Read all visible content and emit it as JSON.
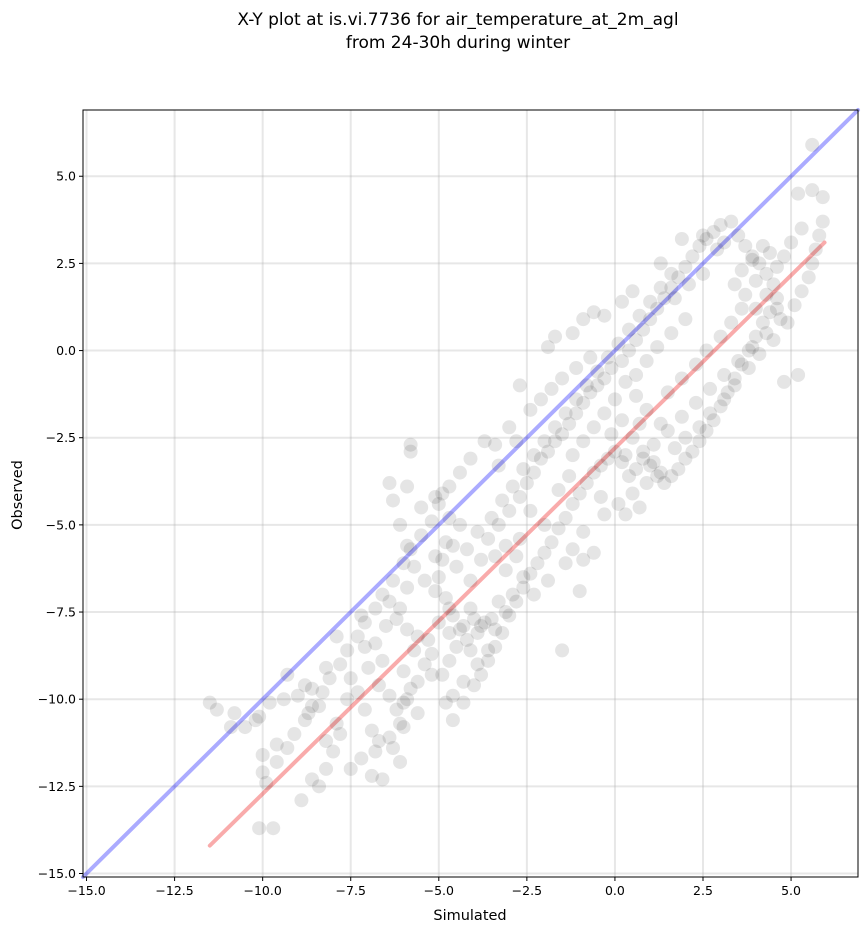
{
  "chart_data": {
    "type": "scatter",
    "title": [
      "X-Y plot at is.vi.7736 for air_temperature_at_2m_agl",
      "from 24-30h during winter"
    ],
    "xlabel": "Simulated",
    "ylabel": "Observed",
    "xlim": [
      -15.1,
      6.9
    ],
    "ylim": [
      -15.1,
      6.9
    ],
    "xticks": [
      -15.0,
      -12.5,
      -10.0,
      -7.5,
      -5.0,
      -2.5,
      0.0,
      2.5,
      5.0
    ],
    "yticks": [
      -15.0,
      -12.5,
      -10.0,
      -7.5,
      -5.0,
      -2.5,
      0.0,
      2.5,
      5.0
    ],
    "xtick_labels": [
      "−15.0",
      "−12.5",
      "−10.0",
      "−7.5",
      "−5.0",
      "−2.5",
      "0.0",
      "2.5",
      "5.0"
    ],
    "ytick_labels": [
      "−15.0",
      "−12.5",
      "−10.0",
      "−7.5",
      "−5.0",
      "−2.5",
      "0.0",
      "2.5",
      "5.0"
    ],
    "grid": true,
    "point_color": "#000000",
    "lines": [
      {
        "color": "#0000ff",
        "x": [
          -15.1,
          6.9
        ],
        "y": [
          -15.1,
          6.9
        ]
      },
      {
        "color": "#ee0000",
        "x": [
          -11.5,
          5.95
        ],
        "y": [
          -14.2,
          3.1
        ]
      }
    ],
    "points": [
      [
        -11.5,
        -10.1
      ],
      [
        -11.3,
        -10.3
      ],
      [
        -10.9,
        -10.8
      ],
      [
        -10.8,
        -10.4
      ],
      [
        -10.5,
        -10.8
      ],
      [
        -10.2,
        -10.6
      ],
      [
        -10.1,
        -10.5
      ],
      [
        -10.0,
        -11.6
      ],
      [
        -10.0,
        -12.1
      ],
      [
        -10.1,
        -13.7
      ],
      [
        -9.7,
        -13.7
      ],
      [
        -9.9,
        -12.4
      ],
      [
        -9.6,
        -11.3
      ],
      [
        -9.8,
        -10.1
      ],
      [
        -9.4,
        -10.0
      ],
      [
        -9.3,
        -9.3
      ],
      [
        -9.0,
        -9.9
      ],
      [
        -8.8,
        -9.6
      ],
      [
        -8.6,
        -9.7
      ],
      [
        -8.4,
        -10.2
      ],
      [
        -8.7,
        -10.4
      ],
      [
        -8.9,
        -12.9
      ],
      [
        -8.2,
        -11.2
      ],
      [
        -8.0,
        -11.5
      ],
      [
        -7.8,
        -11.0
      ],
      [
        -8.6,
        -12.3
      ],
      [
        -8.4,
        -12.5
      ],
      [
        -8.2,
        -12.0
      ],
      [
        -7.9,
        -10.7
      ],
      [
        -7.6,
        -10.0
      ],
      [
        -7.5,
        -9.4
      ],
      [
        -7.3,
        -9.8
      ],
      [
        -7.1,
        -10.3
      ],
      [
        -6.9,
        -10.9
      ],
      [
        -6.7,
        -11.2
      ],
      [
        -6.9,
        -12.2
      ],
      [
        -6.6,
        -12.3
      ],
      [
        -6.3,
        -11.4
      ],
      [
        -6.1,
        -10.7
      ],
      [
        -6.0,
        -10.1
      ],
      [
        -5.8,
        -9.7
      ],
      [
        -5.6,
        -9.5
      ],
      [
        -5.4,
        -9.0
      ],
      [
        -5.2,
        -8.7
      ],
      [
        -5.3,
        -8.3
      ],
      [
        -5.6,
        -8.2
      ],
      [
        -5.9,
        -8.0
      ],
      [
        -6.2,
        -7.7
      ],
      [
        -6.5,
        -7.9
      ],
      [
        -6.8,
        -8.4
      ],
      [
        -7.1,
        -8.5
      ],
      [
        -7.2,
        -7.6
      ],
      [
        -6.4,
        -7.2
      ],
      [
        -6.1,
        -7.4
      ],
      [
        -5.9,
        -6.8
      ],
      [
        -5.7,
        -6.2
      ],
      [
        -5.9,
        -5.6
      ],
      [
        -6.1,
        -5.0
      ],
      [
        -6.3,
        -4.3
      ],
      [
        -5.9,
        -3.9
      ],
      [
        -5.8,
        -2.9
      ],
      [
        -5.8,
        -2.7
      ],
      [
        -5.1,
        -4.2
      ],
      [
        -4.9,
        -4.1
      ],
      [
        -4.7,
        -4.8
      ],
      [
        -4.4,
        -5.0
      ],
      [
        -4.6,
        -5.6
      ],
      [
        -4.9,
        -6.0
      ],
      [
        -5.0,
        -6.5
      ],
      [
        -4.8,
        -7.1
      ],
      [
        -4.6,
        -7.6
      ],
      [
        -4.3,
        -7.9
      ],
      [
        -4.0,
        -7.7
      ],
      [
        -3.8,
        -7.9
      ],
      [
        -4.2,
        -8.3
      ],
      [
        -4.5,
        -8.5
      ],
      [
        -4.7,
        -8.9
      ],
      [
        -4.9,
        -9.3
      ],
      [
        -4.3,
        -9.5
      ],
      [
        -4.6,
        -9.9
      ],
      [
        -4.8,
        -10.1
      ],
      [
        -4.3,
        -10.1
      ],
      [
        -4.6,
        -10.6
      ],
      [
        -3.9,
        -9.0
      ],
      [
        -3.6,
        -8.6
      ],
      [
        -3.4,
        -8.0
      ],
      [
        -3.1,
        -7.5
      ],
      [
        -2.9,
        -7.0
      ],
      [
        -2.6,
        -6.5
      ],
      [
        -2.8,
        -5.9
      ],
      [
        -3.1,
        -5.6
      ],
      [
        -3.4,
        -5.9
      ],
      [
        -3.6,
        -5.4
      ],
      [
        -3.3,
        -5.0
      ],
      [
        -3.0,
        -4.6
      ],
      [
        -2.7,
        -4.2
      ],
      [
        -2.5,
        -3.8
      ],
      [
        -2.3,
        -3.5
      ],
      [
        -2.1,
        -3.1
      ],
      [
        -1.9,
        -2.9
      ],
      [
        -1.7,
        -2.6
      ],
      [
        -1.5,
        -2.4
      ],
      [
        -1.3,
        -2.1
      ],
      [
        -1.1,
        -1.8
      ],
      [
        -0.9,
        -1.5
      ],
      [
        -0.7,
        -1.2
      ],
      [
        -0.5,
        -1.0
      ],
      [
        -0.3,
        -0.8
      ],
      [
        -0.1,
        -0.5
      ],
      [
        0.2,
        -0.3
      ],
      [
        0.4,
        0.0
      ],
      [
        0.6,
        0.3
      ],
      [
        0.8,
        0.6
      ],
      [
        1.0,
        0.9
      ],
      [
        1.2,
        1.2
      ],
      [
        1.4,
        1.5
      ],
      [
        1.6,
        1.8
      ],
      [
        1.8,
        2.1
      ],
      [
        2.0,
        2.4
      ],
      [
        2.2,
        2.7
      ],
      [
        2.4,
        3.0
      ],
      [
        2.6,
        3.2
      ],
      [
        2.8,
        3.4
      ],
      [
        3.0,
        3.6
      ],
      [
        3.3,
        3.7
      ],
      [
        3.5,
        3.3
      ],
      [
        3.7,
        3.0
      ],
      [
        3.9,
        2.7
      ],
      [
        4.1,
        2.5
      ],
      [
        4.3,
        2.2
      ],
      [
        4.5,
        1.9
      ],
      [
        4.6,
        1.5
      ],
      [
        4.4,
        1.1
      ],
      [
        4.2,
        0.8
      ],
      [
        4.0,
        0.4
      ],
      [
        3.8,
        0.0
      ],
      [
        3.6,
        -0.4
      ],
      [
        3.4,
        -0.8
      ],
      [
        3.2,
        -1.2
      ],
      [
        3.0,
        -1.6
      ],
      [
        2.8,
        -2.0
      ],
      [
        2.6,
        -2.3
      ],
      [
        2.4,
        -2.6
      ],
      [
        2.2,
        -2.9
      ],
      [
        2.0,
        -3.1
      ],
      [
        1.8,
        -3.4
      ],
      [
        1.6,
        -3.6
      ],
      [
        1.4,
        -3.8
      ],
      [
        1.2,
        -3.6
      ],
      [
        1.0,
        -3.3
      ],
      [
        0.8,
        -3.1
      ],
      [
        0.6,
        -3.4
      ],
      [
        0.4,
        -3.6
      ],
      [
        0.2,
        -3.2
      ],
      [
        0.0,
        -2.9
      ],
      [
        -0.2,
        -3.1
      ],
      [
        -0.4,
        -3.3
      ],
      [
        -0.6,
        -3.5
      ],
      [
        -0.8,
        -3.8
      ],
      [
        -1.0,
        -4.1
      ],
      [
        -1.2,
        -4.4
      ],
      [
        -1.4,
        -4.8
      ],
      [
        -1.6,
        -5.1
      ],
      [
        -1.8,
        -5.5
      ],
      [
        -2.0,
        -5.8
      ],
      [
        -2.2,
        -6.1
      ],
      [
        -2.4,
        -6.4
      ],
      [
        -2.6,
        -6.8
      ],
      [
        -2.8,
        -7.2
      ],
      [
        -3.0,
        -7.6
      ],
      [
        -3.2,
        -8.1
      ],
      [
        -3.4,
        -8.5
      ],
      [
        -3.6,
        -8.9
      ],
      [
        -3.8,
        -9.3
      ],
      [
        -4.0,
        -9.6
      ],
      [
        -1.5,
        -8.6
      ],
      [
        -1.0,
        -6.9
      ],
      [
        -1.4,
        -6.1
      ],
      [
        -1.9,
        -6.6
      ],
      [
        -2.3,
        -7.0
      ],
      [
        -0.9,
        -6.0
      ],
      [
        -0.6,
        -5.8
      ],
      [
        -0.9,
        -5.2
      ],
      [
        -1.2,
        -5.7
      ],
      [
        -0.3,
        -4.7
      ],
      [
        0.1,
        -4.4
      ],
      [
        0.5,
        -4.1
      ],
      [
        0.9,
        -3.8
      ],
      [
        1.3,
        -3.5
      ],
      [
        0.3,
        -4.7
      ],
      [
        -0.4,
        -4.2
      ],
      [
        0.7,
        -4.5
      ],
      [
        1.1,
        -2.7
      ],
      [
        1.5,
        -2.3
      ],
      [
        1.9,
        -1.9
      ],
      [
        2.3,
        -1.5
      ],
      [
        2.7,
        -1.1
      ],
      [
        3.1,
        -0.7
      ],
      [
        3.5,
        -0.3
      ],
      [
        3.9,
        0.1
      ],
      [
        4.3,
        0.5
      ],
      [
        4.7,
        0.9
      ],
      [
        5.1,
        1.3
      ],
      [
        5.3,
        1.7
      ],
      [
        5.5,
        2.1
      ],
      [
        5.6,
        2.5
      ],
      [
        5.7,
        2.9
      ],
      [
        5.8,
        3.3
      ],
      [
        5.9,
        3.7
      ],
      [
        5.2,
        4.5
      ],
      [
        5.6,
        4.6
      ],
      [
        5.9,
        4.4
      ],
      [
        5.6,
        5.9
      ],
      [
        5.3,
        3.5
      ],
      [
        5.0,
        3.1
      ],
      [
        4.8,
        2.7
      ],
      [
        4.6,
        2.4
      ],
      [
        4.2,
        3.0
      ],
      [
        3.9,
        2.6
      ],
      [
        3.6,
        2.3
      ],
      [
        2.9,
        2.9
      ],
      [
        2.5,
        2.2
      ],
      [
        2.1,
        1.9
      ],
      [
        1.7,
        1.5
      ],
      [
        1.3,
        2.5
      ],
      [
        0.5,
        1.7
      ],
      [
        0.2,
        1.4
      ],
      [
        -0.3,
        1.0
      ],
      [
        -0.6,
        1.1
      ],
      [
        -0.9,
        0.9
      ],
      [
        -1.2,
        0.5
      ],
      [
        -1.7,
        0.4
      ],
      [
        -1.9,
        0.1
      ],
      [
        -0.7,
        -0.2
      ],
      [
        -1.1,
        -0.5
      ],
      [
        -1.5,
        -0.8
      ],
      [
        -1.8,
        -1.1
      ],
      [
        -2.1,
        -1.4
      ],
      [
        -2.4,
        -1.7
      ],
      [
        -2.7,
        -1.0
      ],
      [
        -3.0,
        -2.2
      ],
      [
        -3.4,
        -2.7
      ],
      [
        -3.7,
        -2.6
      ],
      [
        -4.1,
        -3.1
      ],
      [
        -4.4,
        -3.5
      ],
      [
        -4.7,
        -3.9
      ],
      [
        -5.0,
        -4.4
      ],
      [
        -5.2,
        -4.9
      ],
      [
        -5.5,
        -5.3
      ],
      [
        -5.8,
        -5.7
      ],
      [
        -6.0,
        -6.1
      ],
      [
        -6.3,
        -6.6
      ],
      [
        -6.6,
        -7.0
      ],
      [
        -6.8,
        -7.4
      ],
      [
        -7.1,
        -7.8
      ],
      [
        -7.3,
        -8.2
      ],
      [
        -7.6,
        -8.6
      ],
      [
        -7.8,
        -9.0
      ],
      [
        -8.1,
        -9.4
      ],
      [
        -8.3,
        -9.8
      ],
      [
        -8.6,
        -10.2
      ],
      [
        -8.8,
        -10.6
      ],
      [
        -9.1,
        -11.0
      ],
      [
        -9.3,
        -11.4
      ],
      [
        -9.6,
        -11.8
      ],
      [
        -7.0,
        -9.1
      ],
      [
        -6.7,
        -9.6
      ],
      [
        -6.4,
        -9.9
      ],
      [
        -6.2,
        -10.3
      ],
      [
        -5.9,
        -10.0
      ],
      [
        -5.6,
        -10.4
      ],
      [
        -6.0,
        -10.8
      ],
      [
        -6.4,
        -11.1
      ],
      [
        -6.8,
        -11.5
      ],
      [
        -7.2,
        -11.7
      ],
      [
        -7.5,
        -12.0
      ],
      [
        -6.1,
        -11.8
      ],
      [
        -5.2,
        -9.3
      ],
      [
        -4.1,
        -7.4
      ],
      [
        -3.9,
        -8.1
      ],
      [
        -4.4,
        -8.0
      ],
      [
        -4.1,
        -8.6
      ],
      [
        -3.7,
        -7.8
      ],
      [
        -3.3,
        -7.2
      ],
      [
        -3.5,
        -7.7
      ],
      [
        -4.7,
        -7.4
      ],
      [
        -5.1,
        -6.9
      ],
      [
        -5.4,
        -6.6
      ],
      [
        -4.5,
        -6.2
      ],
      [
        -4.2,
        -5.7
      ],
      [
        -3.9,
        -5.2
      ],
      [
        -3.5,
        -4.8
      ],
      [
        -3.2,
        -4.3
      ],
      [
        -2.9,
        -3.9
      ],
      [
        -2.6,
        -3.4
      ],
      [
        -2.3,
        -3.0
      ],
      [
        -2.0,
        -2.6
      ],
      [
        -1.7,
        -2.2
      ],
      [
        -1.4,
        -1.8
      ],
      [
        -1.1,
        -1.4
      ],
      [
        -0.8,
        -1.0
      ],
      [
        -0.5,
        -0.6
      ],
      [
        -0.2,
        -0.2
      ],
      [
        0.1,
        0.2
      ],
      [
        0.4,
        0.6
      ],
      [
        0.7,
        1.0
      ],
      [
        1.0,
        1.4
      ],
      [
        1.3,
        1.8
      ],
      [
        1.6,
        2.2
      ],
      [
        1.9,
        3.2
      ],
      [
        2.5,
        3.3
      ],
      [
        3.1,
        3.1
      ],
      [
        3.4,
        1.9
      ],
      [
        3.7,
        1.6
      ],
      [
        4.0,
        1.2
      ],
      [
        4.3,
        1.6
      ],
      [
        4.6,
        1.2
      ],
      [
        4.9,
        0.8
      ],
      [
        4.5,
        0.3
      ],
      [
        4.1,
        -0.1
      ],
      [
        3.8,
        -0.5
      ],
      [
        3.4,
        -1.0
      ],
      [
        3.1,
        -1.4
      ],
      [
        2.7,
        -1.8
      ],
      [
        2.4,
        -2.2
      ],
      [
        2.0,
        -2.5
      ],
      [
        1.7,
        -2.8
      ],
      [
        1.3,
        -2.1
      ],
      [
        0.9,
        -1.7
      ],
      [
        0.6,
        -1.3
      ],
      [
        0.3,
        -0.9
      ],
      [
        0.0,
        -1.4
      ],
      [
        -0.3,
        -1.8
      ],
      [
        -0.6,
        -2.2
      ],
      [
        -0.9,
        -2.6
      ],
      [
        -1.2,
        -3.0
      ],
      [
        0.5,
        -2.5
      ],
      [
        0.8,
        -2.9
      ],
      [
        1.1,
        -3.2
      ],
      [
        0.2,
        -2.0
      ],
      [
        -0.1,
        -2.4
      ],
      [
        0.3,
        -3.0
      ],
      [
        0.7,
        -2.1
      ],
      [
        1.5,
        -1.2
      ],
      [
        1.9,
        -0.8
      ],
      [
        2.3,
        -0.4
      ],
      [
        2.6,
        0.0
      ],
      [
        3.0,
        0.4
      ],
      [
        3.3,
        0.8
      ],
      [
        3.6,
        1.2
      ],
      [
        4.0,
        2.0
      ],
      [
        4.4,
        2.8
      ],
      [
        2.0,
        0.9
      ],
      [
        1.6,
        0.5
      ],
      [
        1.2,
        0.1
      ],
      [
        0.9,
        -0.3
      ],
      [
        0.6,
        -0.7
      ],
      [
        5.2,
        -0.7
      ],
      [
        4.8,
        -0.9
      ],
      [
        -2.8,
        -2.6
      ],
      [
        -3.3,
        -3.3
      ],
      [
        -2.4,
        -4.6
      ],
      [
        -2.0,
        -5.0
      ],
      [
        -1.6,
        -4.0
      ],
      [
        -1.3,
        -3.6
      ],
      [
        -6.6,
        -8.9
      ],
      [
        -6.0,
        -9.2
      ],
      [
        -5.7,
        -8.6
      ],
      [
        -7.9,
        -8.2
      ],
      [
        -8.2,
        -9.1
      ],
      [
        -5.0,
        -7.8
      ],
      [
        -4.7,
        -8.1
      ],
      [
        -3.1,
        -6.3
      ],
      [
        -2.7,
        -5.4
      ],
      [
        -4.8,
        -5.5
      ],
      [
        -5.1,
        -5.9
      ],
      [
        -4.1,
        -6.6
      ],
      [
        -3.8,
        -6.0
      ],
      [
        -6.4,
        -3.8
      ],
      [
        -5.5,
        -4.5
      ]
    ]
  }
}
